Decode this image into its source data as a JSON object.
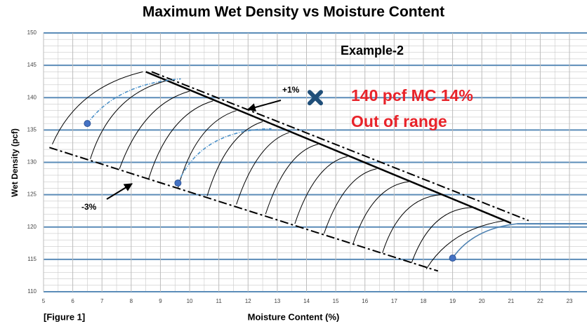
{
  "chart_data": {
    "type": "nomograph",
    "title": "Maximum Wet Density vs Moisture Content",
    "xlabel": "Moisture Content (%)",
    "ylabel": "Wet Density (pcf)",
    "xlim": [
      5,
      23.6
    ],
    "ylim": [
      110,
      150
    ],
    "xticks": [
      5,
      6,
      7,
      8,
      9,
      10,
      11,
      12,
      13,
      14,
      15,
      16,
      17,
      18,
      19,
      20,
      21,
      22,
      23
    ],
    "yticks": [
      110,
      115,
      120,
      125,
      130,
      135,
      140,
      145,
      150
    ],
    "grid": true,
    "grid_color": "#5b8cb8",
    "minor_grid_color": "#c9c9c9",
    "annotations": {
      "example": "Example-2",
      "result_1": "140 pcf MC 14%",
      "result_2": "Out of range",
      "plus": "+1%",
      "minus": "-3%",
      "figure": "[Figure 1]"
    },
    "marker": {
      "x": 14.3,
      "y": 140,
      "color": "#1f4e79"
    },
    "points": {
      "x": [
        6.5,
        9.6,
        19
      ],
      "y": [
        136,
        126.8,
        115.2
      ],
      "color": "#4472c4"
    },
    "lines": [
      {
        "style": "solid",
        "color": "#000000",
        "width": 2.5,
        "x": [
          8.5,
          21
        ],
        "y": [
          144,
          120.6
        ]
      },
      {
        "style": "dashdot",
        "color": "#000000",
        "width": 2,
        "x": [
          8.7,
          21.6
        ],
        "y": [
          144,
          121
        ]
      },
      {
        "style": "dashdot",
        "color": "#000000",
        "width": 2,
        "x": [
          5.2,
          18.5
        ],
        "y": [
          132.3,
          113.2
        ]
      },
      {
        "style": "solid",
        "color": "#4a7fb0",
        "width": 2,
        "x": [
          21.2,
          23.6
        ],
        "y": [
          120.5,
          120.5
        ]
      }
    ],
    "curves": [
      {
        "color": "#000000",
        "x": [
          5.3,
          6.5,
          8.4
        ],
        "y": [
          132.8,
          140,
          144
        ]
      },
      {
        "color": "#000000",
        "x": [
          6.6,
          7.6,
          9.2
        ],
        "y": [
          130.5,
          138.5,
          142.6
        ]
      },
      {
        "color": "#000000",
        "x": [
          7.6,
          8.6,
          10
        ],
        "y": [
          129,
          137,
          141
        ]
      },
      {
        "color": "#000000",
        "x": [
          8.6,
          9.5,
          10.8
        ],
        "y": [
          127.5,
          135.5,
          139.5
        ]
      },
      {
        "color": "#000000",
        "x": [
          9.6,
          10.4,
          11.6
        ],
        "y": [
          126,
          134,
          138
        ]
      },
      {
        "color": "#000000",
        "x": [
          10.6,
          11.4,
          12.5
        ],
        "y": [
          124.8,
          132.5,
          136.3
        ]
      },
      {
        "color": "#000000",
        "x": [
          11.6,
          12.4,
          13.4
        ],
        "y": [
          123.5,
          131,
          134.6
        ]
      },
      {
        "color": "#000000",
        "x": [
          12.6,
          13.4,
          14.4
        ],
        "y": [
          122,
          129.5,
          132.8
        ]
      },
      {
        "color": "#000000",
        "x": [
          13.6,
          14.4,
          15.4
        ],
        "y": [
          120.5,
          127.8,
          130.9
        ]
      },
      {
        "color": "#000000",
        "x": [
          14.6,
          15.4,
          16.4
        ],
        "y": [
          119,
          126,
          129
        ]
      },
      {
        "color": "#000000",
        "x": [
          15.6,
          16.4,
          17.5
        ],
        "y": [
          117.5,
          124.3,
          127
        ]
      },
      {
        "color": "#000000",
        "x": [
          16.6,
          17.4,
          18.6
        ],
        "y": [
          116,
          122.5,
          125
        ]
      },
      {
        "color": "#000000",
        "x": [
          17.6,
          18.5,
          19.8
        ],
        "y": [
          114.5,
          121,
          123
        ]
      },
      {
        "color": "#000000",
        "x": [
          18.1,
          19.2,
          20.8
        ],
        "y": [
          113.5,
          118.5,
          121
        ]
      },
      {
        "color": "#4a90c8",
        "x": [
          6.5,
          7.8,
          9.7
        ],
        "y": [
          136,
          140.8,
          142.9
        ]
      },
      {
        "color": "#4a90c8",
        "x": [
          9.6,
          10.8,
          12.8
        ],
        "y": [
          126.8,
          133,
          135.2
        ]
      },
      {
        "color": "#4a7fb0",
        "x": [
          19,
          19.9,
          21.2
        ],
        "y": [
          115.2,
          118.8,
          120.5
        ]
      }
    ]
  }
}
